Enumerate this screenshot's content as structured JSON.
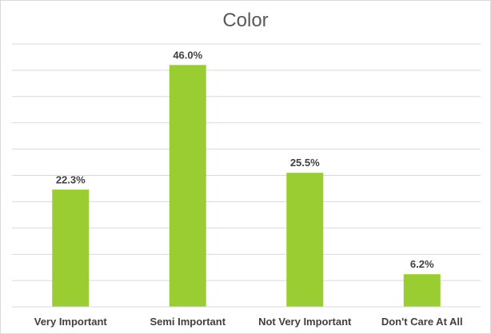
{
  "chart_data": {
    "type": "bar",
    "title": "Color",
    "categories": [
      "Very Important",
      "Semi Important",
      "Not Very Important",
      "Don't Care At All"
    ],
    "values": [
      22.3,
      46.0,
      25.5,
      6.2
    ],
    "data_labels": [
      "22.3%",
      "46.0%",
      "25.5%",
      "6.2%"
    ],
    "xlabel": "",
    "ylabel": "",
    "ylim": [
      0,
      50
    ],
    "grid": true,
    "legend": "none",
    "bar_color": "#9acd32",
    "grid_color": "#d9d9d9"
  }
}
